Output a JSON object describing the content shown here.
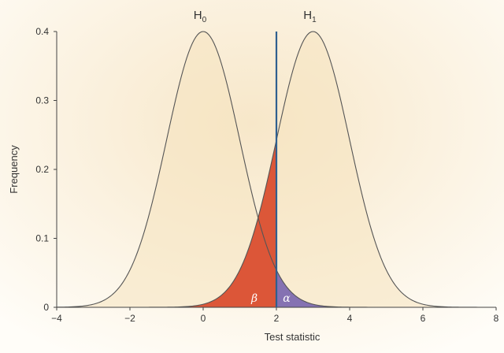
{
  "chart_data": {
    "type": "area",
    "xlabel": "Test statistic",
    "ylabel": "Frequency",
    "xlim": [
      -4,
      8
    ],
    "ylim": [
      0,
      0.4
    ],
    "xticks": [
      "−4",
      "−2",
      "0",
      "2",
      "4",
      "6",
      "8"
    ],
    "xtick_values": [
      -4,
      -2,
      0,
      2,
      4,
      6,
      8
    ],
    "yticks": [
      "0",
      "0.1",
      "0.2",
      "0.3",
      "0.4"
    ],
    "ytick_values": [
      0,
      0.1,
      0.2,
      0.3,
      0.4
    ],
    "grid": false,
    "series": [
      {
        "name": "H0",
        "label_base": "H",
        "label_sub": "0",
        "mean": 0,
        "sd": 1,
        "peak": 0.4
      },
      {
        "name": "H1",
        "label_base": "H",
        "label_sub": "1",
        "mean": 3,
        "sd": 1,
        "peak": 0.4
      }
    ],
    "critical_value": 2,
    "regions": [
      {
        "name": "beta",
        "symbol": "β",
        "curve": "H1",
        "from": -4,
        "to": 2,
        "color": "#d94a2b"
      },
      {
        "name": "alpha",
        "symbol": "α",
        "curve": "H0",
        "from": 2,
        "to": 8,
        "color": "#7b68b0"
      }
    ],
    "colors": {
      "curve_fill": "#f6e3c0",
      "curve_stroke": "#555555",
      "critical_line": "#2f5f8f",
      "axis": "#444444"
    }
  }
}
